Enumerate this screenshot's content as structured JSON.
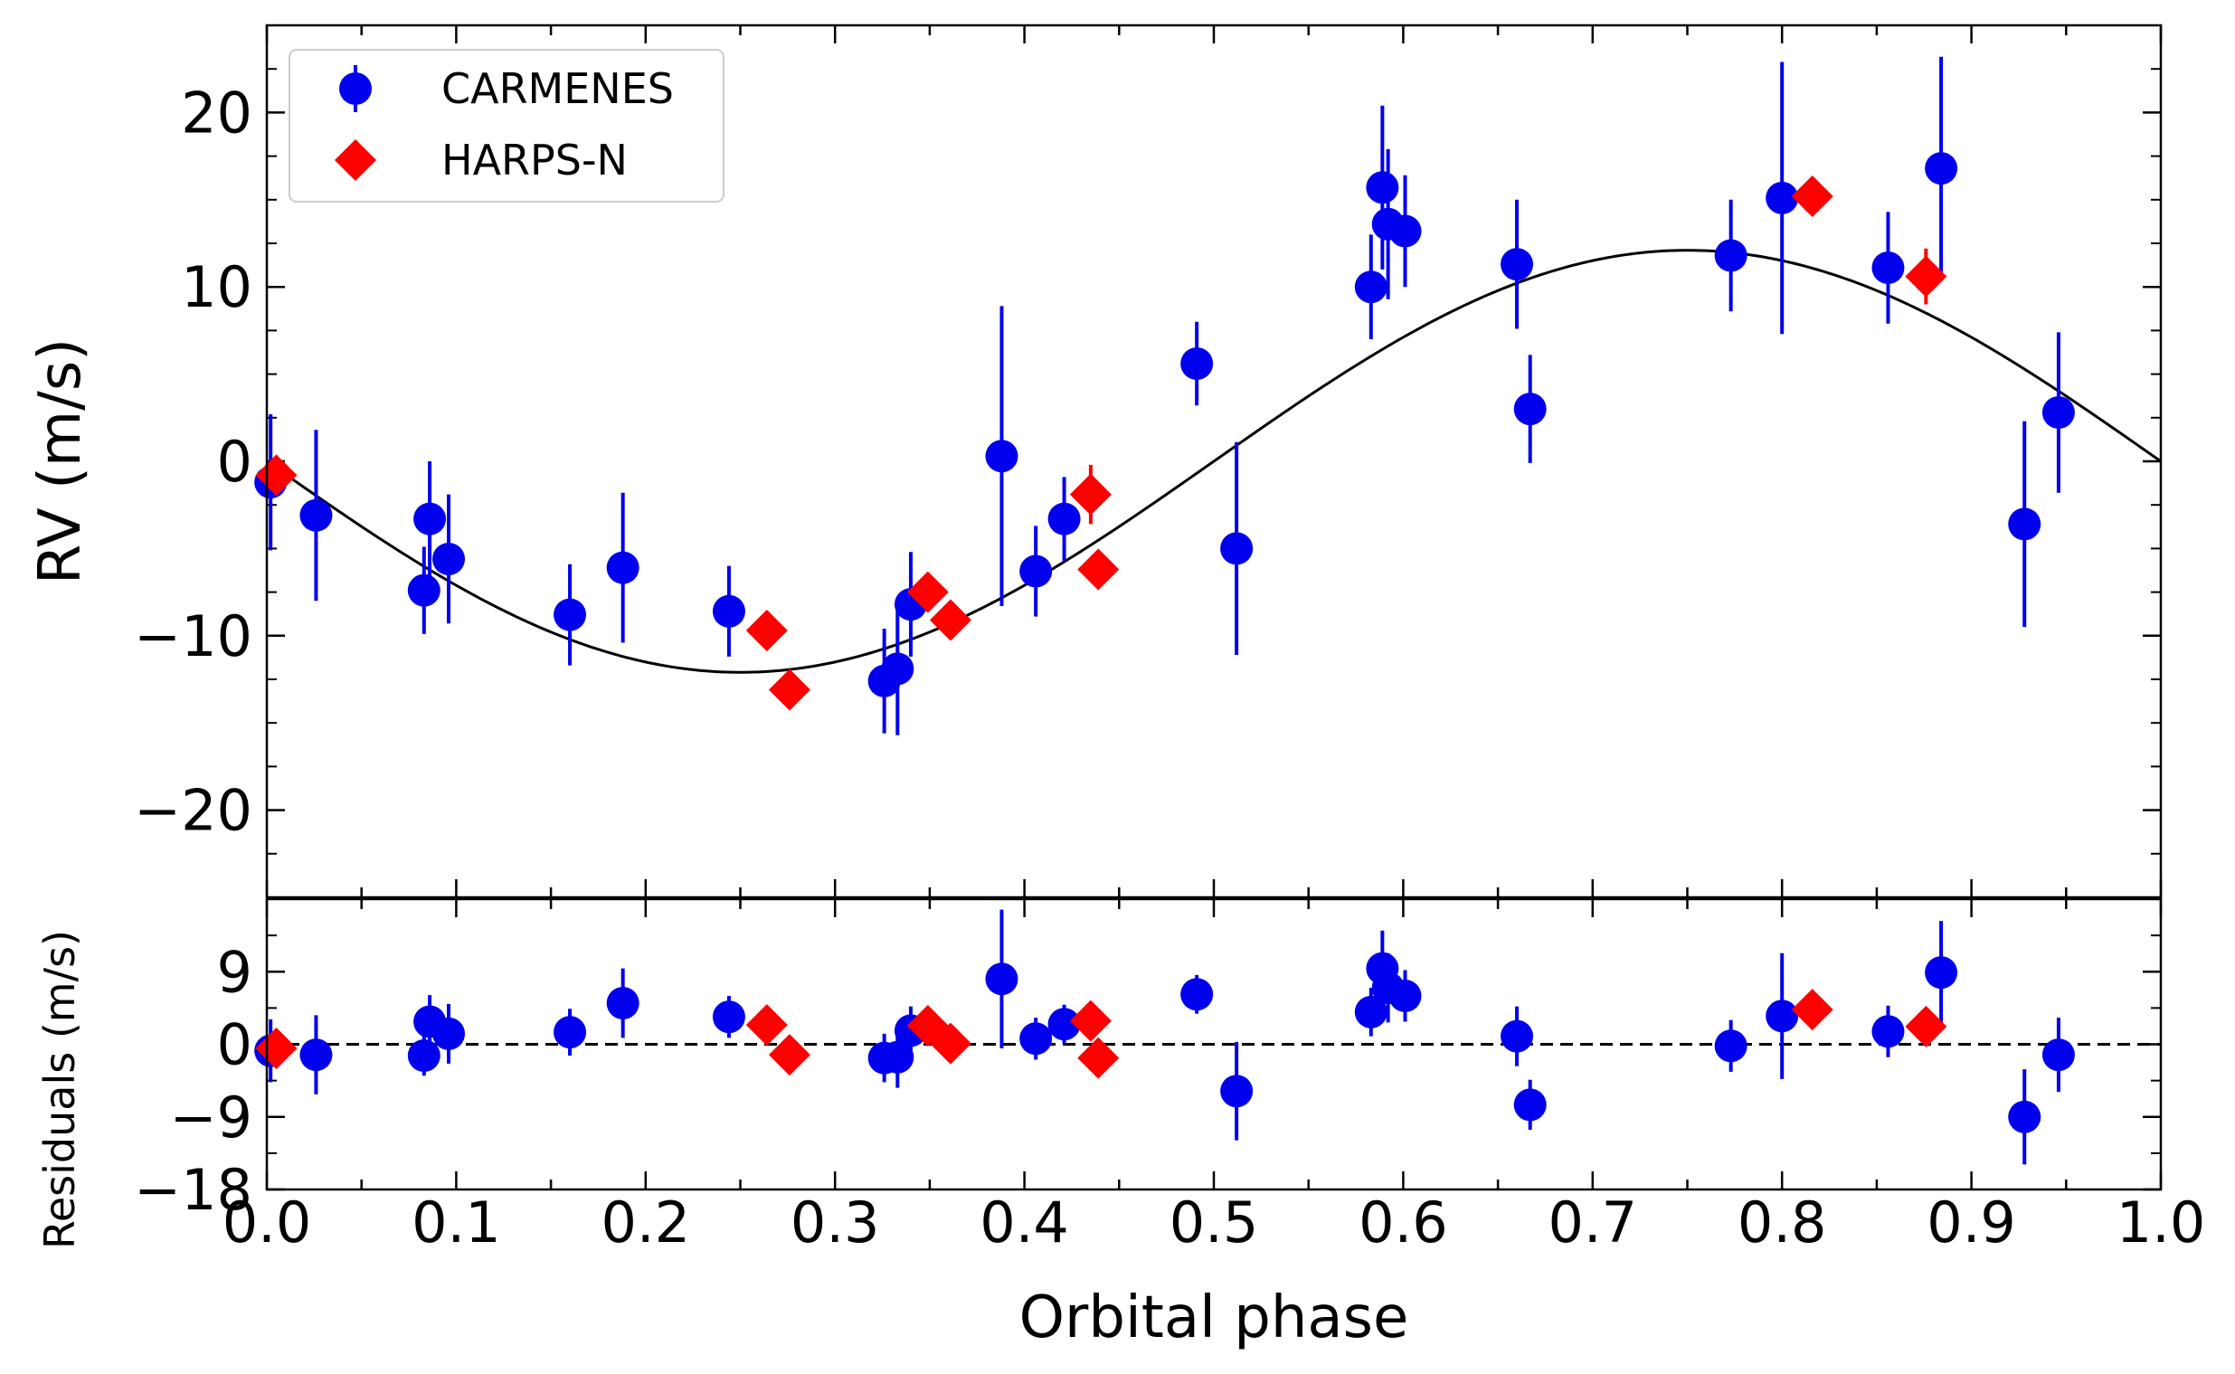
{
  "chart_data": {
    "type": "scatter",
    "xlabel": "Orbital phase",
    "xlim": [
      0.0,
      1.0
    ],
    "x_ticks": [
      "0.0",
      "0.1",
      "0.2",
      "0.3",
      "0.4",
      "0.5",
      "0.6",
      "0.7",
      "0.8",
      "0.9",
      "1.0"
    ],
    "legend": {
      "placement": "top-left",
      "entries": [
        "CARMENES",
        "HARPS-N"
      ]
    },
    "colors": {
      "carmenes": "#0000ee",
      "harpsn": "#ff0000",
      "model": "#000000"
    },
    "top_panel": {
      "ylabel": "RV (m/s)",
      "ylim": [
        -25,
        25
      ],
      "y_ticks": [
        "20",
        "10",
        "0",
        "−10",
        "−20"
      ],
      "model": {
        "shape": "sine",
        "amplitude": 12.1,
        "period_phase": 1.0,
        "minimum_at_phase": 0.25
      },
      "series": [
        {
          "name": "CARMENES",
          "marker": "circle",
          "points": [
            {
              "x": 0.002,
              "y": -1.2,
              "err": 3.9
            },
            {
              "x": 0.026,
              "y": -3.1,
              "err": 4.9
            },
            {
              "x": 0.083,
              "y": -7.4,
              "err": 2.5
            },
            {
              "x": 0.086,
              "y": -3.3,
              "err": 3.3
            },
            {
              "x": 0.096,
              "y": -5.6,
              "err": 3.7
            },
            {
              "x": 0.16,
              "y": -8.8,
              "err": 2.9
            },
            {
              "x": 0.188,
              "y": -6.1,
              "err": 4.3
            },
            {
              "x": 0.244,
              "y": -8.6,
              "err": 2.6
            },
            {
              "x": 0.326,
              "y": -12.6,
              "err": 3.0
            },
            {
              "x": 0.333,
              "y": -11.9,
              "err": 3.8
            },
            {
              "x": 0.34,
              "y": -8.2,
              "err": 3.0
            },
            {
              "x": 0.388,
              "y": 0.3,
              "err": 8.6
            },
            {
              "x": 0.406,
              "y": -6.3,
              "err": 2.6
            },
            {
              "x": 0.421,
              "y": -3.3,
              "err": 2.4
            },
            {
              "x": 0.491,
              "y": 5.6,
              "err": 2.4
            },
            {
              "x": 0.512,
              "y": -5.0,
              "err": 6.1
            },
            {
              "x": 0.583,
              "y": 10.0,
              "err": 3.0
            },
            {
              "x": 0.589,
              "y": 15.7,
              "err": 4.7
            },
            {
              "x": 0.592,
              "y": 13.6,
              "err": 4.3
            },
            {
              "x": 0.601,
              "y": 13.2,
              "err": 3.2
            },
            {
              "x": 0.66,
              "y": 11.3,
              "err": 3.7
            },
            {
              "x": 0.667,
              "y": 3.0,
              "err": 3.1
            },
            {
              "x": 0.773,
              "y": 11.8,
              "err": 3.2
            },
            {
              "x": 0.8,
              "y": 15.1,
              "err": 7.8
            },
            {
              "x": 0.856,
              "y": 11.1,
              "err": 3.2
            },
            {
              "x": 0.884,
              "y": 16.8,
              "err": 6.4
            },
            {
              "x": 0.928,
              "y": -3.6,
              "err": 5.9
            },
            {
              "x": 0.946,
              "y": 2.8,
              "err": 4.6
            }
          ]
        },
        {
          "name": "HARPS-N",
          "marker": "diamond",
          "points": [
            {
              "x": 0.005,
              "y": -0.8,
              "err": 0.8
            },
            {
              "x": 0.264,
              "y": -9.7,
              "err": 0.8
            },
            {
              "x": 0.276,
              "y": -13.1,
              "err": 0.8
            },
            {
              "x": 0.349,
              "y": -7.5,
              "err": 0.8
            },
            {
              "x": 0.361,
              "y": -9.1,
              "err": 0.8
            },
            {
              "x": 0.435,
              "y": -1.9,
              "err": 1.7
            },
            {
              "x": 0.439,
              "y": -6.2,
              "err": 0.8
            },
            {
              "x": 0.816,
              "y": 15.2,
              "err": 0.8
            },
            {
              "x": 0.876,
              "y": 10.6,
              "err": 1.6
            }
          ]
        }
      ]
    },
    "bottom_panel": {
      "ylabel": "Residuals (m/s)",
      "ylim": [
        -18,
        18
      ],
      "y_ticks": [
        "9",
        "0",
        "−9",
        "−18"
      ],
      "zero_line": "dashed",
      "series": [
        {
          "name": "CARMENES",
          "marker": "circle",
          "points": [
            {
              "x": 0.002,
              "y": -0.8,
              "err": 3.9
            },
            {
              "x": 0.026,
              "y": -1.3,
              "err": 4.9
            },
            {
              "x": 0.083,
              "y": -1.4,
              "err": 2.5
            },
            {
              "x": 0.086,
              "y": 2.8,
              "err": 3.3
            },
            {
              "x": 0.096,
              "y": 1.3,
              "err": 3.7
            },
            {
              "x": 0.16,
              "y": 1.5,
              "err": 2.9
            },
            {
              "x": 0.188,
              "y": 5.1,
              "err": 4.3
            },
            {
              "x": 0.244,
              "y": 3.4,
              "err": 2.6
            },
            {
              "x": 0.326,
              "y": -1.7,
              "err": 3.0
            },
            {
              "x": 0.333,
              "y": -1.6,
              "err": 3.8
            },
            {
              "x": 0.34,
              "y": 1.7,
              "err": 3.0
            },
            {
              "x": 0.388,
              "y": 8.1,
              "err": 8.6
            },
            {
              "x": 0.406,
              "y": 0.7,
              "err": 2.6
            },
            {
              "x": 0.421,
              "y": 2.5,
              "err": 2.4
            },
            {
              "x": 0.491,
              "y": 6.2,
              "err": 2.4
            },
            {
              "x": 0.512,
              "y": -5.8,
              "err": 6.1
            },
            {
              "x": 0.583,
              "y": 4.0,
              "err": 3.0
            },
            {
              "x": 0.589,
              "y": 9.4,
              "err": 4.7
            },
            {
              "x": 0.592,
              "y": 7.0,
              "err": 4.3
            },
            {
              "x": 0.601,
              "y": 6.0,
              "err": 3.2
            },
            {
              "x": 0.66,
              "y": 1.0,
              "err": 3.7
            },
            {
              "x": 0.667,
              "y": -7.5,
              "err": 3.1
            },
            {
              "x": 0.773,
              "y": -0.2,
              "err": 3.2
            },
            {
              "x": 0.8,
              "y": 3.5,
              "err": 7.8
            },
            {
              "x": 0.856,
              "y": 1.6,
              "err": 3.2
            },
            {
              "x": 0.884,
              "y": 8.9,
              "err": 6.4
            },
            {
              "x": 0.928,
              "y": -9.0,
              "err": 5.9
            },
            {
              "x": 0.946,
              "y": -1.3,
              "err": 4.6
            }
          ]
        },
        {
          "name": "HARPS-N",
          "marker": "diamond",
          "points": [
            {
              "x": 0.005,
              "y": -0.5,
              "err": 0.8
            },
            {
              "x": 0.264,
              "y": 2.4,
              "err": 0.8
            },
            {
              "x": 0.276,
              "y": -1.3,
              "err": 0.8
            },
            {
              "x": 0.349,
              "y": 2.3,
              "err": 0.8
            },
            {
              "x": 0.361,
              "y": 0.1,
              "err": 0.8
            },
            {
              "x": 0.435,
              "y": 2.9,
              "err": 1.7
            },
            {
              "x": 0.439,
              "y": -1.7,
              "err": 0.8
            },
            {
              "x": 0.816,
              "y": 4.3,
              "err": 0.8
            },
            {
              "x": 0.876,
              "y": 2.2,
              "err": 1.6
            }
          ]
        }
      ]
    }
  }
}
